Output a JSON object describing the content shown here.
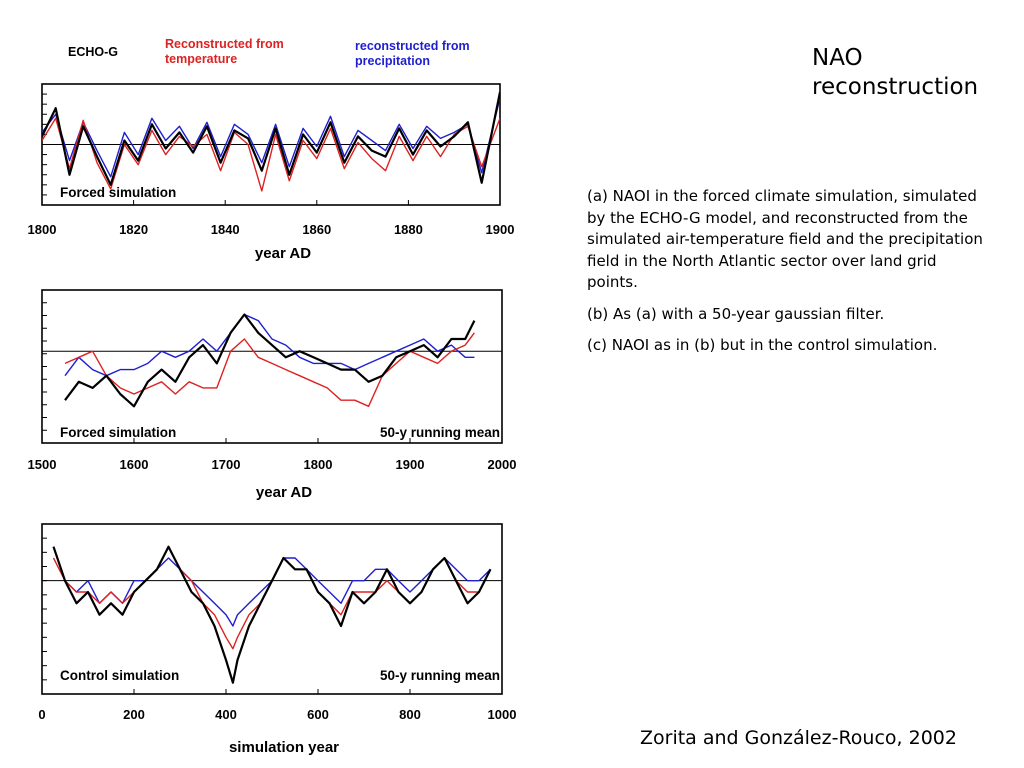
{
  "slide": {
    "title_lines": [
      "NAO",
      "reconstruction"
    ],
    "caption": [
      "(a) NAOI in the forced climate simulation, simulated by the ECHO-G model, and reconstructed from the simulated air-temperature field and the precipitation field in the North Atlantic sector over land grid points.",
      "(b) As (a) with a 50-year gaussian filter.",
      "(c) NAOI as in (b) but in the control simulation."
    ],
    "citation": "Zorita and González-Rouco, 2002"
  },
  "colors": {
    "echo_g": "#000000",
    "temperature": "#dd2222",
    "precipitation": "#1f1fd0"
  },
  "chart_data": [
    {
      "type": "line",
      "panel": "a",
      "legend": [
        {
          "name": "ECHO-G",
          "color": "#000000"
        },
        {
          "name": "Reconstructed from temperature",
          "lines": [
            "Reconstructed from",
            "temperature"
          ],
          "color": "#dd2222"
        },
        {
          "name": "reconstructed from precipitation",
          "lines": [
            "reconstructed from",
            "precipitation"
          ],
          "color": "#1f1fd0"
        }
      ],
      "legend_position": "top-left",
      "annotation_left": "Forced simulation",
      "annotation_right": "",
      "xlabel": "year AD",
      "xlim": [
        1800,
        1900
      ],
      "xticks": [
        1800,
        1820,
        1840,
        1860,
        1880,
        1900
      ],
      "ylim": [
        -3,
        3
      ],
      "zero_line": true,
      "x": [
        1800,
        1803,
        1806,
        1809,
        1812,
        1815,
        1818,
        1821,
        1824,
        1827,
        1830,
        1833,
        1836,
        1839,
        1842,
        1845,
        1848,
        1851,
        1854,
        1857,
        1860,
        1863,
        1866,
        1869,
        1872,
        1875,
        1878,
        1881,
        1884,
        1887,
        1890,
        1893,
        1896,
        1900
      ],
      "series": [
        {
          "name": "ECHO-G",
          "values": [
            0.4,
            1.8,
            -1.5,
            0.9,
            -0.6,
            -2.0,
            0.2,
            -0.8,
            1.0,
            -0.2,
            0.6,
            -0.4,
            0.9,
            -0.9,
            0.7,
            0.3,
            -1.3,
            0.8,
            -1.5,
            0.5,
            -0.4,
            1.1,
            -0.9,
            0.4,
            -0.3,
            -0.6,
            0.8,
            -0.5,
            0.7,
            -0.1,
            0.4,
            1.1,
            -1.9,
            2.6
          ]
        },
        {
          "name": "Reconstructed from temperature",
          "values": [
            0.2,
            1.3,
            -1.2,
            1.2,
            -0.9,
            -2.2,
            0.0,
            -1.0,
            0.7,
            -0.5,
            0.4,
            -0.1,
            0.5,
            -1.3,
            0.6,
            0.0,
            -2.3,
            0.5,
            -1.8,
            0.2,
            -0.7,
            0.8,
            -1.2,
            0.1,
            -0.7,
            -1.3,
            0.4,
            -0.8,
            0.4,
            -0.6,
            0.5,
            0.9,
            -1.1,
            1.3
          ]
        },
        {
          "name": "reconstructed from precipitation",
          "values": [
            0.6,
            1.5,
            -0.8,
            1.1,
            -0.3,
            -1.6,
            0.6,
            -0.5,
            1.3,
            0.2,
            0.9,
            -0.2,
            1.1,
            -0.6,
            1.0,
            0.5,
            -0.9,
            1.0,
            -1.1,
            0.8,
            -0.1,
            1.4,
            -0.6,
            0.7,
            0.2,
            -0.3,
            1.0,
            -0.2,
            0.9,
            0.3,
            0.6,
            1.0,
            -1.4,
            2.3
          ]
        }
      ]
    },
    {
      "type": "line",
      "panel": "b",
      "legend": [],
      "annotation_left": "Forced simulation",
      "annotation_right": "50-y running mean",
      "xlabel": "year AD",
      "xlim": [
        1500,
        2000
      ],
      "xticks": [
        1500,
        1600,
        1700,
        1800,
        1900,
        2000
      ],
      "ylim": [
        -1.5,
        1.0
      ],
      "zero_line": true,
      "x": [
        1525,
        1540,
        1555,
        1570,
        1585,
        1600,
        1615,
        1630,
        1645,
        1660,
        1675,
        1690,
        1705,
        1720,
        1735,
        1750,
        1765,
        1780,
        1795,
        1810,
        1825,
        1840,
        1855,
        1870,
        1885,
        1900,
        1915,
        1930,
        1945,
        1960,
        1970
      ],
      "series": [
        {
          "name": "ECHO-G",
          "values": [
            -0.8,
            -0.5,
            -0.6,
            -0.4,
            -0.7,
            -0.9,
            -0.5,
            -0.3,
            -0.5,
            -0.1,
            0.1,
            -0.2,
            0.3,
            0.6,
            0.3,
            0.1,
            -0.1,
            0.0,
            -0.1,
            -0.2,
            -0.3,
            -0.3,
            -0.5,
            -0.4,
            -0.1,
            0.0,
            0.1,
            -0.1,
            0.2,
            0.2,
            0.5
          ]
        },
        {
          "name": "Reconstructed from temperature",
          "values": [
            -0.2,
            -0.1,
            0.0,
            -0.4,
            -0.6,
            -0.7,
            -0.6,
            -0.5,
            -0.7,
            -0.5,
            -0.6,
            -0.6,
            0.0,
            0.2,
            -0.1,
            -0.2,
            -0.3,
            -0.4,
            -0.5,
            -0.6,
            -0.8,
            -0.8,
            -0.9,
            -0.4,
            -0.2,
            0.0,
            -0.1,
            -0.2,
            0.0,
            0.1,
            0.3
          ]
        },
        {
          "name": "reconstructed from precipitation",
          "values": [
            -0.4,
            -0.1,
            -0.3,
            -0.4,
            -0.3,
            -0.3,
            -0.2,
            0.0,
            -0.1,
            0.0,
            0.2,
            0.0,
            0.3,
            0.6,
            0.5,
            0.2,
            0.1,
            -0.1,
            -0.2,
            -0.2,
            -0.2,
            -0.3,
            -0.2,
            -0.1,
            0.0,
            0.1,
            0.2,
            0.0,
            0.1,
            -0.1,
            -0.1
          ]
        }
      ]
    },
    {
      "type": "line",
      "panel": "c",
      "legend": [],
      "annotation_left": "Control simulation",
      "annotation_right": "50-y running mean",
      "xlabel": "simulation year",
      "xlim": [
        0,
        1000
      ],
      "xticks": [
        0,
        200,
        400,
        600,
        800,
        1000
      ],
      "ylim": [
        -1.0,
        0.5
      ],
      "zero_line": true,
      "x": [
        25,
        50,
        75,
        100,
        125,
        150,
        175,
        200,
        225,
        250,
        275,
        300,
        325,
        350,
        375,
        400,
        415,
        425,
        450,
        475,
        500,
        525,
        550,
        575,
        600,
        625,
        650,
        675,
        700,
        725,
        750,
        775,
        800,
        825,
        850,
        875,
        900,
        925,
        950,
        975
      ],
      "series": [
        {
          "name": "ECHO-G",
          "values": [
            0.3,
            0.0,
            -0.2,
            -0.1,
            -0.3,
            -0.2,
            -0.3,
            -0.1,
            0.0,
            0.1,
            0.3,
            0.1,
            -0.1,
            -0.2,
            -0.4,
            -0.7,
            -0.9,
            -0.7,
            -0.4,
            -0.2,
            0.0,
            0.2,
            0.1,
            0.1,
            -0.1,
            -0.2,
            -0.4,
            -0.1,
            -0.2,
            -0.1,
            0.1,
            -0.1,
            -0.2,
            -0.1,
            0.1,
            0.2,
            0.0,
            -0.2,
            -0.1,
            0.1
          ]
        },
        {
          "name": "Reconstructed from temperature",
          "values": [
            0.2,
            0.0,
            -0.1,
            -0.1,
            -0.2,
            -0.1,
            -0.2,
            -0.1,
            0.0,
            0.1,
            0.3,
            0.1,
            0.0,
            -0.2,
            -0.3,
            -0.5,
            -0.6,
            -0.5,
            -0.3,
            -0.2,
            0.0,
            0.2,
            0.1,
            0.1,
            -0.1,
            -0.2,
            -0.3,
            -0.1,
            -0.1,
            -0.1,
            0.0,
            -0.1,
            -0.2,
            -0.1,
            0.1,
            0.2,
            0.0,
            -0.1,
            -0.1,
            0.1
          ]
        },
        {
          "name": "reconstructed from precipitation",
          "values": [
            0.3,
            0.0,
            -0.1,
            0.0,
            -0.2,
            -0.1,
            -0.2,
            0.0,
            0.0,
            0.1,
            0.2,
            0.1,
            0.0,
            -0.1,
            -0.2,
            -0.3,
            -0.4,
            -0.3,
            -0.2,
            -0.1,
            0.0,
            0.2,
            0.2,
            0.1,
            0.0,
            -0.1,
            -0.2,
            0.0,
            0.0,
            0.1,
            0.1,
            0.0,
            -0.1,
            0.0,
            0.1,
            0.2,
            0.1,
            0.0,
            0.0,
            0.1
          ]
        }
      ]
    }
  ]
}
